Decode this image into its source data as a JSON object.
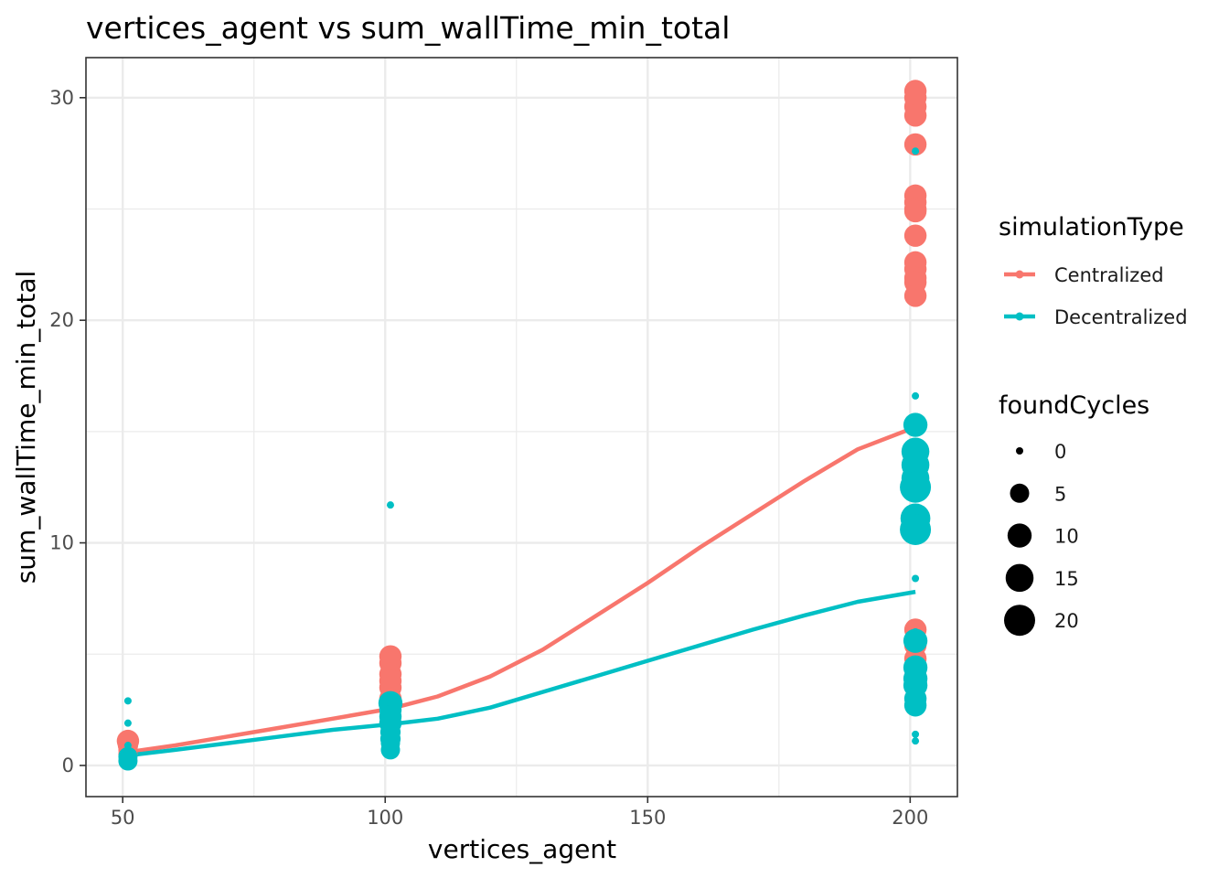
{
  "chart_data": {
    "type": "scatter",
    "title": "vertices_agent  vs  sum_wallTime_min_total",
    "xlabel": "vertices_agent",
    "ylabel": "sum_wallTime_min_total",
    "xlim": [
      43,
      209
    ],
    "ylim": [
      -1.4,
      31.8
    ],
    "x_ticks": [
      50,
      100,
      150,
      200
    ],
    "y_ticks": [
      0,
      10,
      20,
      30
    ],
    "grid": true,
    "legend_position": "right",
    "color_legend": {
      "title": "simulationType",
      "entries": [
        {
          "label": "Centralized",
          "color": "#F8766D"
        },
        {
          "label": "Decentralized",
          "color": "#00BFC4"
        }
      ]
    },
    "size_legend": {
      "title": "foundCycles",
      "entries": [
        {
          "label": "0",
          "value": 0
        },
        {
          "label": "5",
          "value": 5
        },
        {
          "label": "10",
          "value": 10
        },
        {
          "label": "15",
          "value": 15
        },
        {
          "label": "20",
          "value": 20
        }
      ]
    },
    "series": [
      {
        "name": "Centralized",
        "color": "#F8766D",
        "points": [
          {
            "x": 51,
            "y": 1.1,
            "size": 8
          },
          {
            "x": 51,
            "y": 0.9,
            "size": 6
          },
          {
            "x": 51,
            "y": 0.7,
            "size": 5
          },
          {
            "x": 51,
            "y": 0.5,
            "size": 5
          },
          {
            "x": 101,
            "y": 4.9,
            "size": 8
          },
          {
            "x": 101,
            "y": 4.6,
            "size": 8
          },
          {
            "x": 101,
            "y": 4.1,
            "size": 8
          },
          {
            "x": 101,
            "y": 3.8,
            "size": 8
          },
          {
            "x": 101,
            "y": 3.5,
            "size": 8
          },
          {
            "x": 101,
            "y": 3.0,
            "size": 8
          },
          {
            "x": 101,
            "y": 2.7,
            "size": 8
          },
          {
            "x": 201,
            "y": 30.3,
            "size": 8
          },
          {
            "x": 201,
            "y": 30.0,
            "size": 8
          },
          {
            "x": 201,
            "y": 29.6,
            "size": 8
          },
          {
            "x": 201,
            "y": 29.2,
            "size": 8
          },
          {
            "x": 201,
            "y": 27.9,
            "size": 8
          },
          {
            "x": 201,
            "y": 25.6,
            "size": 8
          },
          {
            "x": 201,
            "y": 25.3,
            "size": 8
          },
          {
            "x": 201,
            "y": 25.0,
            "size": 8
          },
          {
            "x": 201,
            "y": 24.9,
            "size": 8
          },
          {
            "x": 201,
            "y": 23.8,
            "size": 8
          },
          {
            "x": 201,
            "y": 22.6,
            "size": 8
          },
          {
            "x": 201,
            "y": 22.3,
            "size": 8
          },
          {
            "x": 201,
            "y": 21.9,
            "size": 8
          },
          {
            "x": 201,
            "y": 21.7,
            "size": 8
          },
          {
            "x": 201,
            "y": 21.1,
            "size": 8
          },
          {
            "x": 201,
            "y": 6.1,
            "size": 8
          },
          {
            "x": 201,
            "y": 5.4,
            "size": 8
          },
          {
            "x": 201,
            "y": 4.8,
            "size": 8
          },
          {
            "x": 201,
            "y": 4.3,
            "size": 8
          },
          {
            "x": 201,
            "y": 4.0,
            "size": 8
          }
        ],
        "smooth": [
          [
            51,
            0.6
          ],
          [
            60,
            0.9
          ],
          [
            70,
            1.3
          ],
          [
            80,
            1.7
          ],
          [
            90,
            2.1
          ],
          [
            101,
            2.55
          ],
          [
            110,
            3.1
          ],
          [
            120,
            4.0
          ],
          [
            130,
            5.2
          ],
          [
            140,
            6.7
          ],
          [
            150,
            8.2
          ],
          [
            160,
            9.8
          ],
          [
            170,
            11.3
          ],
          [
            180,
            12.8
          ],
          [
            190,
            14.2
          ],
          [
            201,
            15.2
          ]
        ]
      },
      {
        "name": "Decentralized",
        "color": "#00BFC4",
        "points": [
          {
            "x": 51,
            "y": 2.9,
            "size": 0
          },
          {
            "x": 51,
            "y": 1.9,
            "size": 0
          },
          {
            "x": 51,
            "y": 0.9,
            "size": 0
          },
          {
            "x": 51,
            "y": 0.4,
            "size": 5
          },
          {
            "x": 51,
            "y": 0.2,
            "size": 5
          },
          {
            "x": 101,
            "y": 11.7,
            "size": 0
          },
          {
            "x": 101,
            "y": 2.8,
            "size": 10
          },
          {
            "x": 101,
            "y": 2.5,
            "size": 8
          },
          {
            "x": 101,
            "y": 2.2,
            "size": 8
          },
          {
            "x": 101,
            "y": 1.9,
            "size": 8
          },
          {
            "x": 101,
            "y": 1.5,
            "size": 6
          },
          {
            "x": 101,
            "y": 1.2,
            "size": 6
          },
          {
            "x": 101,
            "y": 1.0,
            "size": 5
          },
          {
            "x": 101,
            "y": 0.7,
            "size": 5
          },
          {
            "x": 201,
            "y": 27.6,
            "size": 0
          },
          {
            "x": 201,
            "y": 16.6,
            "size": 0
          },
          {
            "x": 201,
            "y": 15.3,
            "size": 10
          },
          {
            "x": 201,
            "y": 14.1,
            "size": 15
          },
          {
            "x": 201,
            "y": 13.5,
            "size": 15
          },
          {
            "x": 201,
            "y": 12.9,
            "size": 15
          },
          {
            "x": 201,
            "y": 12.5,
            "size": 20
          },
          {
            "x": 201,
            "y": 11.1,
            "size": 18
          },
          {
            "x": 201,
            "y": 10.6,
            "size": 20
          },
          {
            "x": 201,
            "y": 8.4,
            "size": 0
          },
          {
            "x": 201,
            "y": 6.0,
            "size": 0
          },
          {
            "x": 201,
            "y": 5.6,
            "size": 10
          },
          {
            "x": 201,
            "y": 4.4,
            "size": 10
          },
          {
            "x": 201,
            "y": 3.9,
            "size": 10
          },
          {
            "x": 201,
            "y": 3.6,
            "size": 10
          },
          {
            "x": 201,
            "y": 3.0,
            "size": 8
          },
          {
            "x": 201,
            "y": 2.7,
            "size": 8
          },
          {
            "x": 201,
            "y": 1.4,
            "size": 0
          },
          {
            "x": 201,
            "y": 1.1,
            "size": 0
          }
        ],
        "smooth": [
          [
            51,
            0.45
          ],
          [
            60,
            0.7
          ],
          [
            70,
            1.0
          ],
          [
            80,
            1.3
          ],
          [
            90,
            1.6
          ],
          [
            101,
            1.85
          ],
          [
            110,
            2.1
          ],
          [
            120,
            2.6
          ],
          [
            130,
            3.3
          ],
          [
            140,
            4.0
          ],
          [
            150,
            4.7
          ],
          [
            160,
            5.4
          ],
          [
            170,
            6.1
          ],
          [
            180,
            6.75
          ],
          [
            190,
            7.35
          ],
          [
            201,
            7.8
          ]
        ]
      }
    ]
  }
}
